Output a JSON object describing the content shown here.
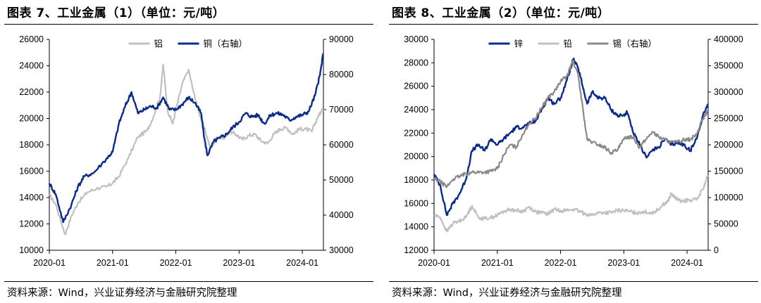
{
  "chart_data": [
    {
      "type": "line",
      "title": "图表 7、工业金属（1）（单位：元/吨）",
      "source": "资料来源：Wind，兴业证券经济与金融研究院整理",
      "x_tick_labels": [
        "2020-01",
        "2021-01",
        "2022-01",
        "2023-01",
        "2024-01"
      ],
      "x_range": [
        "2020-01",
        "2024-05"
      ],
      "y_left": {
        "range": [
          10000,
          26000
        ],
        "ticks": [
          "10000",
          "12000",
          "14000",
          "16000",
          "18000",
          "20000",
          "22000",
          "24000",
          "26000"
        ]
      },
      "y_right": {
        "range": [
          30000,
          90000
        ],
        "ticks": [
          "30000",
          "40000",
          "50000",
          "60000",
          "70000",
          "80000",
          "90000"
        ]
      },
      "legend_position": "top-center",
      "series": [
        {
          "name": "铝",
          "axis": "left",
          "color": "#c0c0c0",
          "points": [
            [
              2020.0,
              14200
            ],
            [
              2020.1,
              13500
            ],
            [
              2020.25,
              11200
            ],
            [
              2020.35,
              12600
            ],
            [
              2020.45,
              13600
            ],
            [
              2020.6,
              14400
            ],
            [
              2020.75,
              14700
            ],
            [
              2020.9,
              14800
            ],
            [
              2021.0,
              15100
            ],
            [
              2021.1,
              15600
            ],
            [
              2021.25,
              17000
            ],
            [
              2021.4,
              18600
            ],
            [
              2021.55,
              19100
            ],
            [
              2021.65,
              20200
            ],
            [
              2021.75,
              21600
            ],
            [
              2021.8,
              24100
            ],
            [
              2021.87,
              20600
            ],
            [
              2021.95,
              19600
            ],
            [
              2022.0,
              20600
            ],
            [
              2022.1,
              22600
            ],
            [
              2022.2,
              23700
            ],
            [
              2022.28,
              22000
            ],
            [
              2022.35,
              20700
            ],
            [
              2022.45,
              19300
            ],
            [
              2022.55,
              17700
            ],
            [
              2022.65,
              18600
            ],
            [
              2022.75,
              18500
            ],
            [
              2022.85,
              19000
            ],
            [
              2022.95,
              18800
            ],
            [
              2023.05,
              18400
            ],
            [
              2023.15,
              18700
            ],
            [
              2023.25,
              18800
            ],
            [
              2023.35,
              18300
            ],
            [
              2023.45,
              18100
            ],
            [
              2023.55,
              18800
            ],
            [
              2023.65,
              19200
            ],
            [
              2023.75,
              19300
            ],
            [
              2023.85,
              18800
            ],
            [
              2023.95,
              19200
            ],
            [
              2024.05,
              19200
            ],
            [
              2024.15,
              19000
            ],
            [
              2024.25,
              20200
            ],
            [
              2024.33,
              20700
            ]
          ]
        },
        {
          "name": "铜（右轴）",
          "axis": "right",
          "color": "#0a2a8c",
          "points": [
            [
              2020.0,
              49000
            ],
            [
              2020.1,
              46000
            ],
            [
              2020.22,
              38000
            ],
            [
              2020.35,
              43000
            ],
            [
              2020.45,
              48000
            ],
            [
              2020.55,
              51000
            ],
            [
              2020.7,
              52000
            ],
            [
              2020.9,
              56000
            ],
            [
              2021.0,
              58000
            ],
            [
              2021.1,
              66000
            ],
            [
              2021.2,
              71000
            ],
            [
              2021.3,
              75000
            ],
            [
              2021.4,
              69000
            ],
            [
              2021.5,
              70000
            ],
            [
              2021.6,
              71000
            ],
            [
              2021.7,
              70500
            ],
            [
              2021.8,
              73500
            ],
            [
              2021.9,
              70000
            ],
            [
              2022.0,
              70000
            ],
            [
              2022.1,
              71500
            ],
            [
              2022.2,
              73500
            ],
            [
              2022.3,
              72000
            ],
            [
              2022.4,
              69000
            ],
            [
              2022.45,
              62000
            ],
            [
              2022.5,
              57000
            ],
            [
              2022.6,
              61000
            ],
            [
              2022.7,
              62000
            ],
            [
              2022.8,
              63000
            ],
            [
              2022.9,
              65000
            ],
            [
              2023.0,
              66500
            ],
            [
              2023.1,
              69000
            ],
            [
              2023.2,
              68000
            ],
            [
              2023.3,
              68500
            ],
            [
              2023.4,
              66000
            ],
            [
              2023.5,
              68500
            ],
            [
              2023.6,
              69000
            ],
            [
              2023.7,
              68500
            ],
            [
              2023.8,
              67000
            ],
            [
              2023.9,
              68000
            ],
            [
              2024.0,
              68500
            ],
            [
              2024.1,
              69500
            ],
            [
              2024.2,
              74000
            ],
            [
              2024.28,
              80000
            ],
            [
              2024.33,
              86000
            ]
          ]
        }
      ]
    },
    {
      "type": "line",
      "title": "图表 8、工业金属（2）（单位：元/吨）",
      "source": "资料来源：Wind，兴业证券经济与金融研究院整理",
      "x_tick_labels": [
        "2020-01",
        "2021-01",
        "2022-01",
        "2023-01",
        "2024-01"
      ],
      "x_range": [
        "2020-01",
        "2024-05"
      ],
      "y_left": {
        "range": [
          12000,
          30000
        ],
        "ticks": [
          "12000",
          "14000",
          "16000",
          "18000",
          "20000",
          "22000",
          "24000",
          "26000",
          "28000",
          "30000"
        ]
      },
      "y_right": {
        "range": [
          0,
          400000
        ],
        "ticks": [
          "0",
          "50000",
          "100000",
          "150000",
          "200000",
          "250000",
          "300000",
          "350000",
          "400000"
        ]
      },
      "legend_position": "top-center",
      "series": [
        {
          "name": "锌",
          "axis": "left",
          "color": "#0a2a8c",
          "points": [
            [
              2020.0,
              18500
            ],
            [
              2020.1,
              17500
            ],
            [
              2020.2,
              15000
            ],
            [
              2020.3,
              16000
            ],
            [
              2020.4,
              16800
            ],
            [
              2020.5,
              18000
            ],
            [
              2020.6,
              20500
            ],
            [
              2020.7,
              21000
            ],
            [
              2020.8,
              20500
            ],
            [
              2020.9,
              21500
            ],
            [
              2021.0,
              21000
            ],
            [
              2021.1,
              21500
            ],
            [
              2021.2,
              22000
            ],
            [
              2021.3,
              22500
            ],
            [
              2021.4,
              22500
            ],
            [
              2021.5,
              22800
            ],
            [
              2021.6,
              23000
            ],
            [
              2021.7,
              24000
            ],
            [
              2021.8,
              25000
            ],
            [
              2021.9,
              24500
            ],
            [
              2022.0,
              25000
            ],
            [
              2022.1,
              26500
            ],
            [
              2022.2,
              28300
            ],
            [
              2022.28,
              27500
            ],
            [
              2022.35,
              26000
            ],
            [
              2022.42,
              24500
            ],
            [
              2022.5,
              25500
            ],
            [
              2022.6,
              25000
            ],
            [
              2022.7,
              25000
            ],
            [
              2022.8,
              24000
            ],
            [
              2022.9,
              23500
            ],
            [
              2023.0,
              23500
            ],
            [
              2023.05,
              23800
            ],
            [
              2023.15,
              22000
            ],
            [
              2023.25,
              21000
            ],
            [
              2023.35,
              20000
            ],
            [
              2023.45,
              20500
            ],
            [
              2023.55,
              20800
            ],
            [
              2023.65,
              21500
            ],
            [
              2023.75,
              21000
            ],
            [
              2023.85,
              21200
            ],
            [
              2023.95,
              21000
            ],
            [
              2024.05,
              20500
            ],
            [
              2024.15,
              21500
            ],
            [
              2024.25,
              23500
            ],
            [
              2024.33,
              24500
            ]
          ]
        },
        {
          "name": "铅",
          "axis": "left",
          "color": "#c0c0c0",
          "points": [
            [
              2020.0,
              15000
            ],
            [
              2020.1,
              14800
            ],
            [
              2020.2,
              13600
            ],
            [
              2020.3,
              14300
            ],
            [
              2020.4,
              14500
            ],
            [
              2020.5,
              14800
            ],
            [
              2020.6,
              15800
            ],
            [
              2020.7,
              14800
            ],
            [
              2020.8,
              14700
            ],
            [
              2020.9,
              14800
            ],
            [
              2021.0,
              15000
            ],
            [
              2021.1,
              15300
            ],
            [
              2021.2,
              15500
            ],
            [
              2021.3,
              15400
            ],
            [
              2021.4,
              15300
            ],
            [
              2021.5,
              15700
            ],
            [
              2021.6,
              15300
            ],
            [
              2021.7,
              15200
            ],
            [
              2021.8,
              15100
            ],
            [
              2021.9,
              15500
            ],
            [
              2022.0,
              15400
            ],
            [
              2022.1,
              15400
            ],
            [
              2022.2,
              15500
            ],
            [
              2022.3,
              15300
            ],
            [
              2022.4,
              15100
            ],
            [
              2022.5,
              15000
            ],
            [
              2022.6,
              15200
            ],
            [
              2022.7,
              15200
            ],
            [
              2022.8,
              15200
            ],
            [
              2022.9,
              15400
            ],
            [
              2023.0,
              15400
            ],
            [
              2023.1,
              15300
            ],
            [
              2023.2,
              15200
            ],
            [
              2023.3,
              15300
            ],
            [
              2023.4,
              15200
            ],
            [
              2023.5,
              15300
            ],
            [
              2023.6,
              15800
            ],
            [
              2023.7,
              16200
            ],
            [
              2023.75,
              16800
            ],
            [
              2023.85,
              16300
            ],
            [
              2023.95,
              16200
            ],
            [
              2024.05,
              16300
            ],
            [
              2024.15,
              16300
            ],
            [
              2024.25,
              17200
            ],
            [
              2024.33,
              18400
            ]
          ]
        },
        {
          "name": "锡（右轴）",
          "axis": "right",
          "color": "#8a8a8a",
          "points": [
            [
              2020.0,
              135000
            ],
            [
              2020.1,
              130000
            ],
            [
              2020.2,
              120000
            ],
            [
              2020.3,
              135000
            ],
            [
              2020.4,
              140000
            ],
            [
              2020.5,
              145000
            ],
            [
              2020.6,
              148000
            ],
            [
              2020.7,
              148000
            ],
            [
              2020.8,
              148000
            ],
            [
              2020.9,
              150000
            ],
            [
              2021.0,
              155000
            ],
            [
              2021.1,
              180000
            ],
            [
              2021.2,
              200000
            ],
            [
              2021.3,
              195000
            ],
            [
              2021.4,
              220000
            ],
            [
              2021.5,
              240000
            ],
            [
              2021.6,
              250000
            ],
            [
              2021.7,
              270000
            ],
            [
              2021.8,
              290000
            ],
            [
              2021.9,
              300000
            ],
            [
              2022.0,
              320000
            ],
            [
              2022.1,
              330000
            ],
            [
              2022.2,
              360000
            ],
            [
              2022.28,
              330000
            ],
            [
              2022.35,
              270000
            ],
            [
              2022.42,
              210000
            ],
            [
              2022.5,
              205000
            ],
            [
              2022.6,
              200000
            ],
            [
              2022.7,
              195000
            ],
            [
              2022.8,
              185000
            ],
            [
              2022.9,
              190000
            ],
            [
              2023.0,
              210000
            ],
            [
              2023.05,
              215000
            ],
            [
              2023.15,
              215000
            ],
            [
              2023.25,
              195000
            ],
            [
              2023.35,
              210000
            ],
            [
              2023.45,
              225000
            ],
            [
              2023.55,
              215000
            ],
            [
              2023.65,
              210000
            ],
            [
              2023.75,
              205000
            ],
            [
              2023.85,
              205000
            ],
            [
              2023.95,
              210000
            ],
            [
              2024.05,
              210000
            ],
            [
              2024.15,
              220000
            ],
            [
              2024.25,
              250000
            ],
            [
              2024.33,
              265000
            ]
          ]
        }
      ]
    }
  ]
}
